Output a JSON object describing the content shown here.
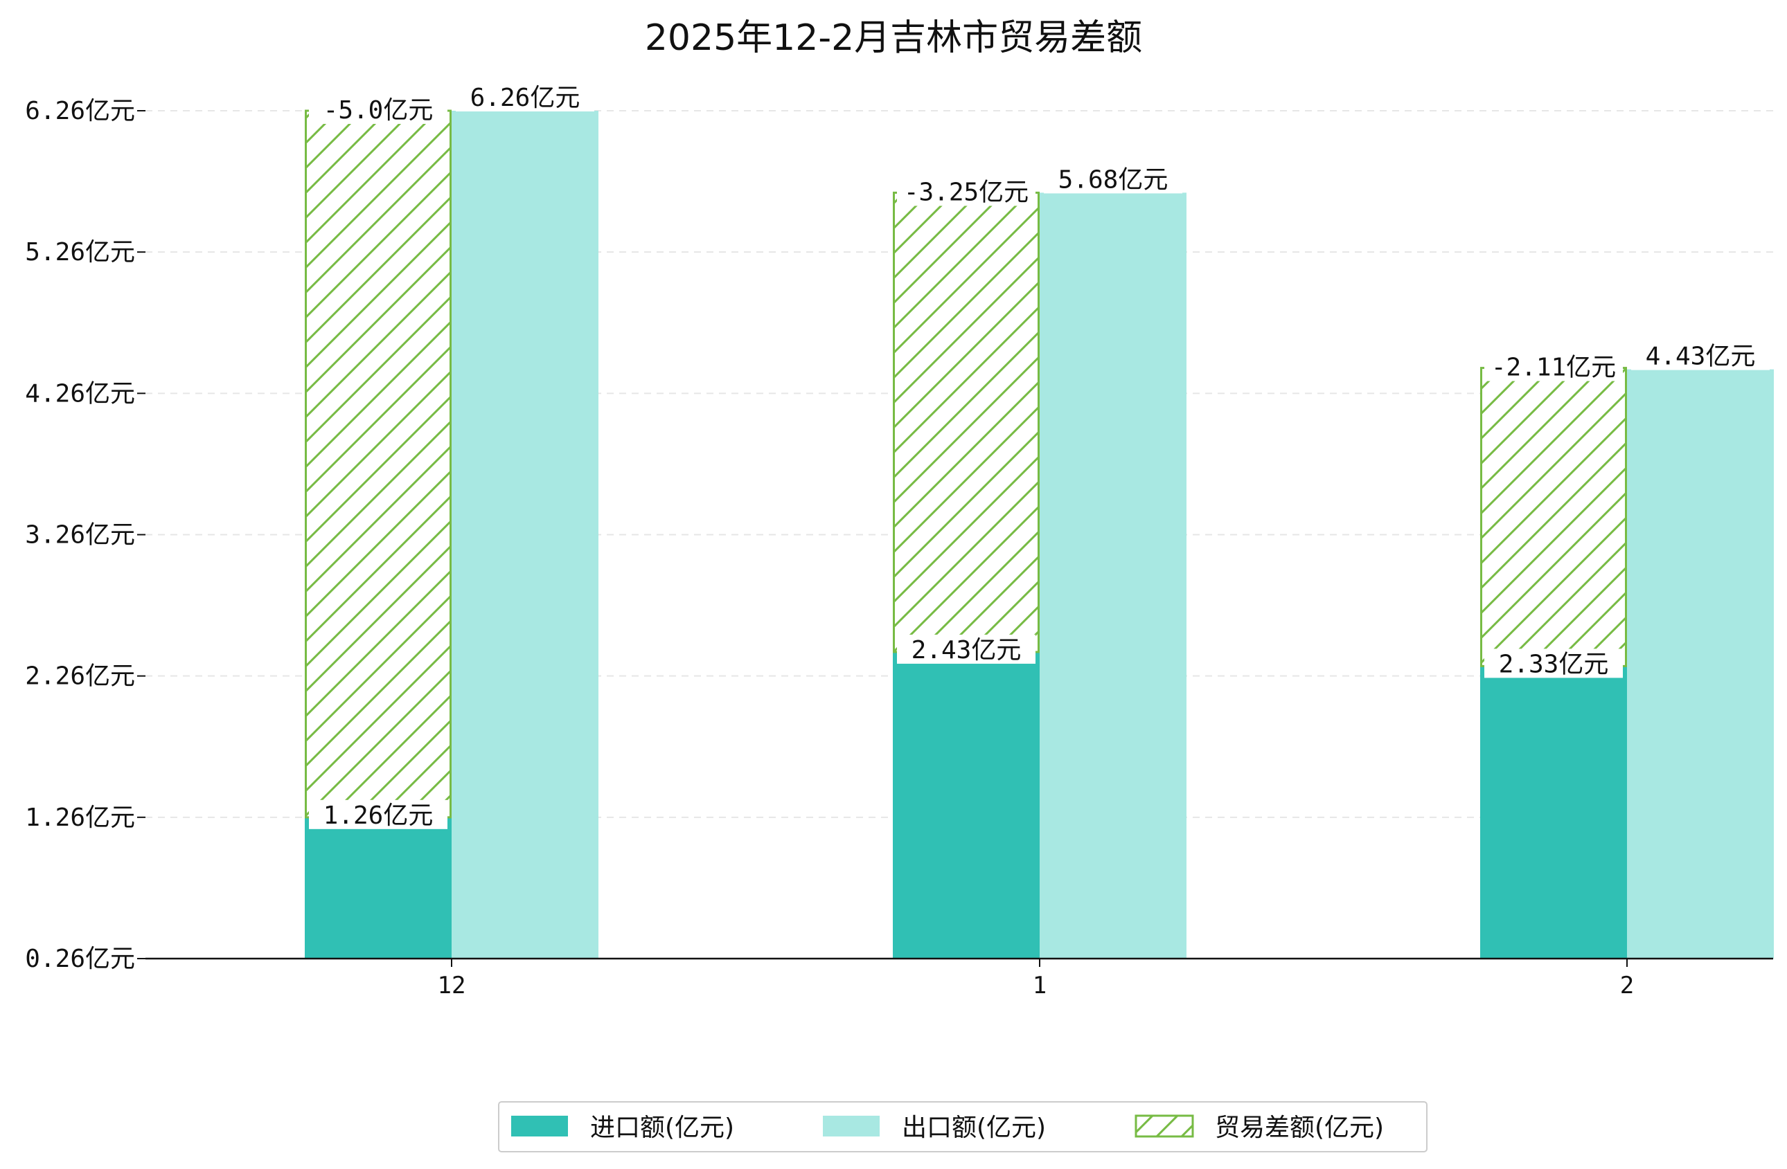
{
  "chart_data": {
    "type": "bar",
    "title": "2025年12-2月吉林市贸易差额",
    "xlabel": "",
    "ylabel": "",
    "categories": [
      "12",
      "1",
      "2"
    ],
    "yticks": [
      "0.26亿元",
      "1.26亿元",
      "2.26亿元",
      "3.26亿元",
      "4.26亿元",
      "5.26亿元",
      "6.26亿元"
    ],
    "ylim": [
      0.26,
      6.26
    ],
    "grid": "y-dashed",
    "legend_position": "bottom",
    "series": [
      {
        "name": "进口额(亿元)",
        "values": [
          1.26,
          2.43,
          2.33
        ],
        "labels": [
          "1.26亿元",
          "2.43亿元",
          "2.33亿元"
        ],
        "color": "#30c0b4"
      },
      {
        "name": "出口额(亿元)",
        "values": [
          6.26,
          5.68,
          4.43
        ],
        "labels": [
          "6.26亿元",
          "5.68亿元",
          "4.43亿元"
        ],
        "color": "#a8e8e2"
      },
      {
        "name": "贸易差额(亿元)",
        "values": [
          -5.0,
          -3.25,
          -2.11
        ],
        "labels": [
          "-5.0亿元",
          "-3.25亿元",
          "-2.11亿元"
        ],
        "color": "#77bb44",
        "pattern": "hatch"
      }
    ]
  }
}
